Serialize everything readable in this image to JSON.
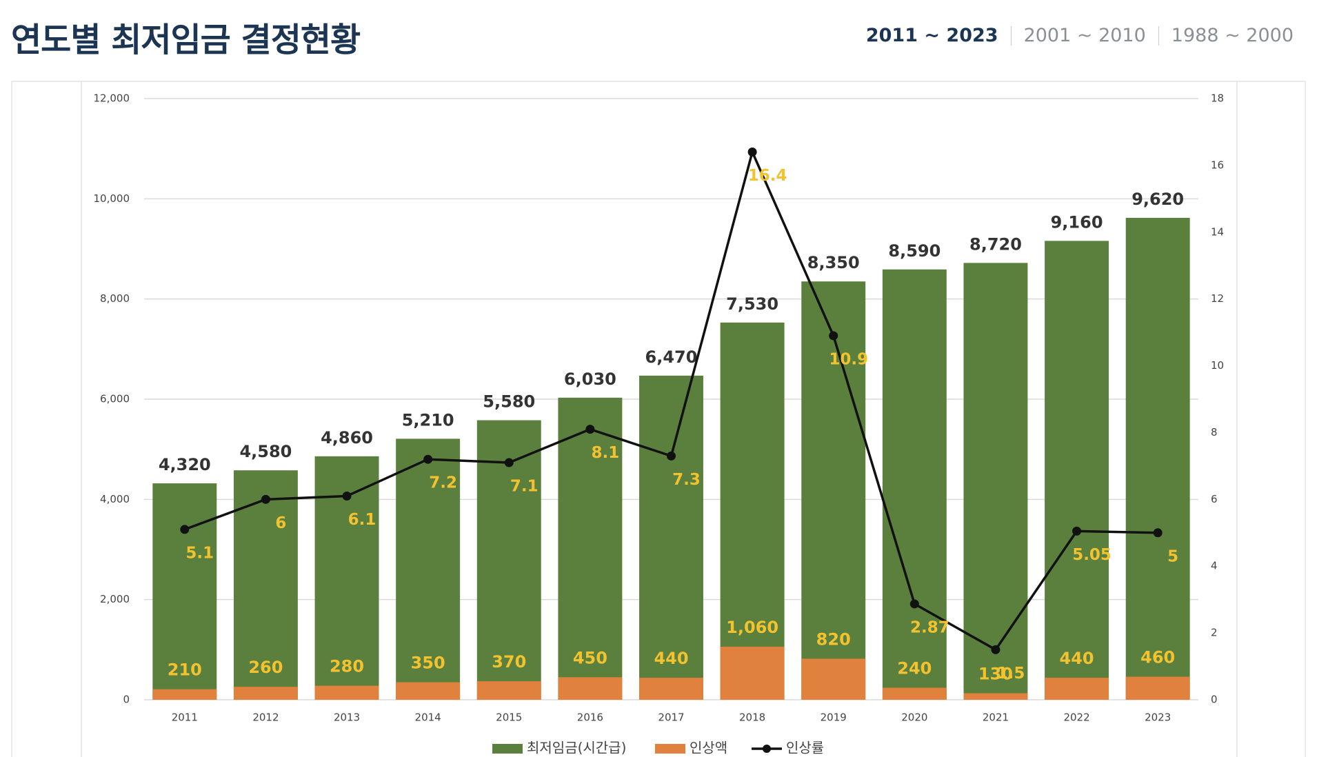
{
  "page": {
    "tabs": [
      "2011 ~ 2023",
      "2001 ~ 2010",
      "1988 ~ 2000"
    ]
  },
  "chart_data": {
    "type": "bar",
    "title": "연도별 최저임금 결정현황",
    "categories": [
      "2011",
      "2012",
      "2013",
      "2014",
      "2015",
      "2016",
      "2017",
      "2018",
      "2019",
      "2020",
      "2021",
      "2022",
      "2023"
    ],
    "series": [
      {
        "name": "최저임금(시간급)",
        "type": "bar",
        "color": "#5b7f3c",
        "values": [
          4320,
          4580,
          4860,
          5210,
          5580,
          6030,
          6470,
          7530,
          8350,
          8590,
          8720,
          9160,
          9620
        ],
        "value_labels": [
          "4,320",
          "4,580",
          "4,860",
          "5,210",
          "5,580",
          "6,030",
          "6,470",
          "7,530",
          "8,350",
          "8,590",
          "8,720",
          "9,160",
          "9,620"
        ]
      },
      {
        "name": "인상액",
        "type": "bar",
        "color": "#e0823e",
        "values": [
          210,
          260,
          280,
          350,
          370,
          450,
          440,
          1060,
          820,
          240,
          130,
          440,
          460
        ],
        "value_labels": [
          "210",
          "260",
          "280",
          "350",
          "370",
          "450",
          "440",
          "1,060",
          "820",
          "240",
          "130",
          "440",
          "460"
        ]
      },
      {
        "name": "인상률",
        "type": "line",
        "color": "#111111",
        "axis": "y2",
        "values": [
          5.1,
          6,
          6.1,
          7.2,
          7.1,
          8.1,
          7.3,
          16.4,
          10.9,
          2.87,
          1.5,
          5.05,
          5
        ]
      }
    ],
    "ylim": [
      0,
      12000
    ],
    "yticks": [
      0,
      {
        "value": 2000,
        "label": "2,000"
      },
      {
        "value": 4000,
        "label": "4,000"
      },
      {
        "value": 6000,
        "label": "6,000"
      },
      {
        "value": 8000,
        "label": "8,000"
      },
      {
        "value": 10000,
        "label": "10,000"
      },
      {
        "value": 12000,
        "label": "12,000"
      }
    ],
    "y2lim": [
      0,
      18
    ],
    "y2ticks": [
      0,
      2,
      4,
      6,
      8,
      10,
      12,
      14,
      16,
      18
    ],
    "grid": true,
    "legend": "bottom"
  }
}
